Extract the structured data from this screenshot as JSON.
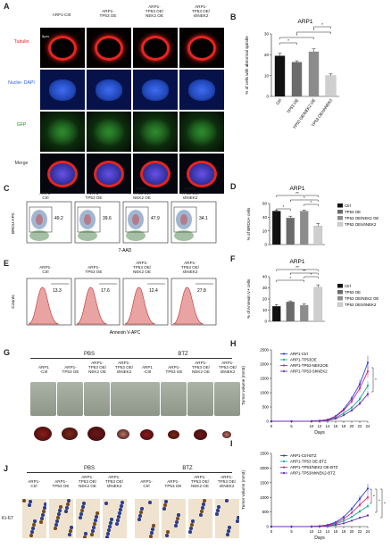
{
  "panels": [
    "A",
    "B",
    "C",
    "D",
    "E",
    "F",
    "G",
    "H",
    "I",
    "J"
  ],
  "a": {
    "columns": [
      "ARP1-Ctrl",
      "ARP1-\nTP53 OE",
      "ARP1-\nTP53 OE/\nNEK2 OE",
      "ARP1-\nTP53 OE/\nshNEK2"
    ],
    "rows": [
      "Tubulin",
      "Nuclei-\nDAPI",
      "GFP",
      "Merge"
    ],
    "scale": "5μm"
  },
  "b": {
    "title": "ARP1"
  },
  "c": {
    "columns": [
      "ARP1-\nCtrl",
      "ARP1-\nTP53 OE",
      "ARP1-\nTP53 OE/\nNEK2 OE",
      "ARP1-\nTP53 OE/\nshNEK2"
    ],
    "values": [
      "49.2",
      "39.6",
      "47.9",
      "34.1"
    ],
    "ylabel": "BRDU-APC",
    "xlabel": "7-AAD"
  },
  "e": {
    "columns": [
      "ARP1-\nCtrl",
      "ARP1-\nTP53 OE",
      "ARP1-\nTP53 OE/\nNEK2 OE",
      "ARP1-\nTP53 OE/\nshNEK2"
    ],
    "values": [
      "13.3",
      "17.6",
      "12.4",
      "27.8"
    ],
    "ylabel": "Counts",
    "xlabel": "Annexin V-APC"
  },
  "colors": {
    "ctrl": "#111111",
    "tp53": "#6b6b6b",
    "nek2oe": "#8c8c8c",
    "shnek2": "#cfcfcf",
    "h_ctrl": "#2d3fd6",
    "h_tp53": "#19a89a",
    "h_nek2": "#d4287b",
    "h_sh": "#6a2cb0"
  },
  "chart_data": [
    {
      "panel": "B",
      "type": "bar",
      "title": "ARP1",
      "categories": [
        "Ctrl",
        "TP53 OE",
        "TP53 OE/NEK2 OE",
        "TP53 OE/shNEK2"
      ],
      "values": [
        19.5,
        16.5,
        21.5,
        10
      ],
      "errors": [
        1.2,
        0.6,
        1.3,
        0.8
      ],
      "ylabel": "% of cells with abnormal spindle",
      "ylim": [
        0,
        30
      ],
      "yticks": [
        "0",
        "10",
        "20",
        "30"
      ],
      "significance": [
        "*",
        "*",
        "*",
        "*"
      ]
    },
    {
      "panel": "D",
      "type": "bar",
      "title": "ARP1",
      "categories": [
        "Ctrl",
        "TP53 OE",
        "TP53 OE/NEK2 OE",
        "TP53 OE/shNEK2"
      ],
      "values": [
        49,
        39,
        49,
        27
      ],
      "errors": [
        0.8,
        2.5,
        1.5,
        4
      ],
      "ylabel": "% of BRDU+ cells",
      "ylim": [
        0,
        60
      ],
      "yticks": [
        "0",
        "20",
        "40",
        "60"
      ],
      "legend": [
        "Ctrl",
        "TP53 OE",
        "TP53 OE/NEK2 OE",
        "TP53 OE/shNEK2"
      ],
      "significance": [
        "**",
        "*",
        "*",
        "*"
      ]
    },
    {
      "panel": "F",
      "type": "bar",
      "title": "ARP1",
      "categories": [
        "Ctrl",
        "TP53 OE",
        "TP53 OE/NEK2 OE",
        "TP53 OE/shNEK2"
      ],
      "values": [
        13.5,
        17.5,
        14.5,
        30.5
      ],
      "errors": [
        1.5,
        0.8,
        1.2,
        2.2
      ],
      "ylabel": "% of Annexin V+ cells",
      "ylim": [
        0,
        40
      ],
      "yticks": [
        "0",
        "10",
        "20",
        "30",
        "40"
      ],
      "legend": [
        "Ctrl",
        "TP53 OE",
        "TP53 OE/NEK2 OE",
        "TP53 OE/shNEK2"
      ],
      "significance": [
        "**",
        "**",
        "*",
        "*"
      ]
    },
    {
      "panel": "H",
      "type": "line",
      "x": [
        0,
        5,
        10,
        12,
        14,
        16,
        18,
        20,
        22,
        24
      ],
      "xticks": [
        "0",
        "5",
        "10",
        "12",
        "14",
        "16",
        "18",
        "20",
        "22",
        "24"
      ],
      "xlabel": "Days",
      "ylabel": "Tumor volume (mm3)",
      "ylim": [
        0,
        2500
      ],
      "yticks": [
        "0",
        "500",
        "1000",
        "1500",
        "2000",
        "2500"
      ],
      "series": [
        {
          "name": "ARP1-Ctrl",
          "values": [
            0,
            0,
            5,
            20,
            60,
            180,
            420,
            800,
            1300,
            2050
          ]
        },
        {
          "name": "ARP1-TP53OE",
          "values": [
            0,
            0,
            3,
            12,
            40,
            120,
            280,
            480,
            780,
            1250
          ]
        },
        {
          "name": "ARP1-TP53-NEK2OE",
          "values": [
            0,
            0,
            4,
            18,
            55,
            160,
            380,
            700,
            1150,
            1750
          ]
        },
        {
          "name": "ARP1-TP53-ShNEK2",
          "values": [
            0,
            0,
            2,
            8,
            30,
            90,
            210,
            380,
            620,
            950
          ]
        }
      ],
      "significance": [
        "*"
      ]
    },
    {
      "panel": "I",
      "type": "line",
      "x": [
        0,
        5,
        10,
        12,
        14,
        16,
        18,
        20,
        22,
        24
      ],
      "xticks": [
        "0",
        "5",
        "10",
        "12",
        "14",
        "16",
        "18",
        "20",
        "22",
        "24"
      ],
      "xlabel": "Days",
      "ylabel": "Tumor volumn (mm3)",
      "ylim": [
        0,
        2500
      ],
      "yticks": [
        "0",
        "500",
        "1000",
        "1500",
        "2000",
        "2500"
      ],
      "series": [
        {
          "name": "ARP1-Ctrl-BTZ",
          "values": [
            0,
            0,
            5,
            20,
            60,
            150,
            330,
            600,
            950,
            1300
          ]
        },
        {
          "name": "ARP1-TP53 OE-BTZ",
          "values": [
            0,
            0,
            3,
            10,
            35,
            90,
            190,
            330,
            520,
            700
          ]
        },
        {
          "name": "ARP1-TP53/NEK2 OE-BTZ",
          "values": [
            0,
            0,
            4,
            15,
            45,
            120,
            260,
            470,
            740,
            1000
          ]
        },
        {
          "name": "ARP1-TP53/shNEK2-BTZ",
          "values": [
            0,
            0,
            2,
            6,
            20,
            55,
            110,
            200,
            300,
            380
          ]
        }
      ],
      "significance": [
        "*",
        "*",
        "*"
      ]
    }
  ],
  "g": {
    "groups": [
      "PBS",
      "BTZ"
    ],
    "columns": [
      "ARP1\n-Ctrl",
      "ARP1-\nTP53 OE",
      "ARP1-\nTP53 OE/\nNEK2 OE",
      "ARP1-\nTP53 OE/\nshNEK2"
    ]
  },
  "j": {
    "groups": [
      "PBS",
      "BTZ"
    ],
    "columns": [
      "ARP1-\nCtrl",
      "ARP1-\nTP53 OE",
      "ARP1-\nTP53 OE/\nNEK2 OE",
      "ARP1-\nTP53 OE/\nshNEK2"
    ],
    "row": "Ki-67"
  }
}
